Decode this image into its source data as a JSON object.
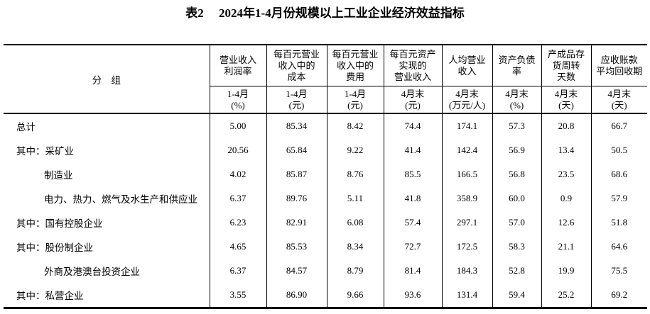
{
  "title": "表2　 2024年1-4月份规模以上工业企业经济效益指标",
  "table": {
    "group_header": "分　组",
    "columns": [
      {
        "label": "营业收入\n利润率",
        "sub": "1-4月\n(%)"
      },
      {
        "label": "每百元营业\n收入中的\n成本",
        "sub": "1-4月\n(元)"
      },
      {
        "label": "每百元营业\n收入中的\n费用",
        "sub": "1-4月\n(元)"
      },
      {
        "label": "每百元资产\n实现的\n营业收入",
        "sub": "4月末\n(元)"
      },
      {
        "label": "人均营业\n收入",
        "sub": "4月末\n(万元/人)"
      },
      {
        "label": "资产负债\n率",
        "sub": "4月末\n(%)"
      },
      {
        "label": "产成品存\n货周转\n天数",
        "sub": "4月末\n(天)"
      },
      {
        "label": "应收账款\n平均回收期",
        "sub": "4月末\n(天)"
      }
    ],
    "rows": [
      {
        "prefix": "",
        "name": "总计",
        "indent": false,
        "values": [
          "5.00",
          "85.34",
          "8.42",
          "74.4",
          "174.1",
          "57.3",
          "20.8",
          "66.7"
        ]
      },
      {
        "prefix": "其中：",
        "name": "采矿业",
        "indent": false,
        "values": [
          "20.56",
          "65.84",
          "9.22",
          "41.4",
          "142.4",
          "56.9",
          "13.4",
          "50.5"
        ]
      },
      {
        "prefix": "",
        "name": "制造业",
        "indent": true,
        "values": [
          "4.02",
          "85.87",
          "8.76",
          "85.5",
          "166.5",
          "56.8",
          "23.5",
          "68.6"
        ]
      },
      {
        "prefix": "",
        "name": "电力、热力、燃气及水生产和供应业",
        "indent": true,
        "values": [
          "6.37",
          "89.76",
          "5.11",
          "41.8",
          "358.9",
          "60.0",
          "0.9",
          "57.9"
        ]
      },
      {
        "prefix": "其中：",
        "name": "国有控股企业",
        "indent": false,
        "values": [
          "6.23",
          "82.91",
          "6.08",
          "57.4",
          "297.1",
          "57.0",
          "12.6",
          "51.8"
        ]
      },
      {
        "prefix": "其中：",
        "name": "股份制企业",
        "indent": false,
        "values": [
          "4.65",
          "85.53",
          "8.34",
          "72.7",
          "172.5",
          "58.3",
          "21.1",
          "64.6"
        ]
      },
      {
        "prefix": "",
        "name": "外商及港澳台投资企业",
        "indent": true,
        "values": [
          "6.37",
          "84.57",
          "8.79",
          "81.4",
          "184.3",
          "52.8",
          "19.9",
          "75.5"
        ]
      },
      {
        "prefix": "其中：",
        "name": "私营企业",
        "indent": false,
        "values": [
          "3.55",
          "86.90",
          "9.66",
          "93.6",
          "131.4",
          "59.4",
          "25.2",
          "69.2"
        ]
      }
    ]
  },
  "colors": {
    "text": "#000000",
    "border": "#000000",
    "background": "#ffffff"
  }
}
